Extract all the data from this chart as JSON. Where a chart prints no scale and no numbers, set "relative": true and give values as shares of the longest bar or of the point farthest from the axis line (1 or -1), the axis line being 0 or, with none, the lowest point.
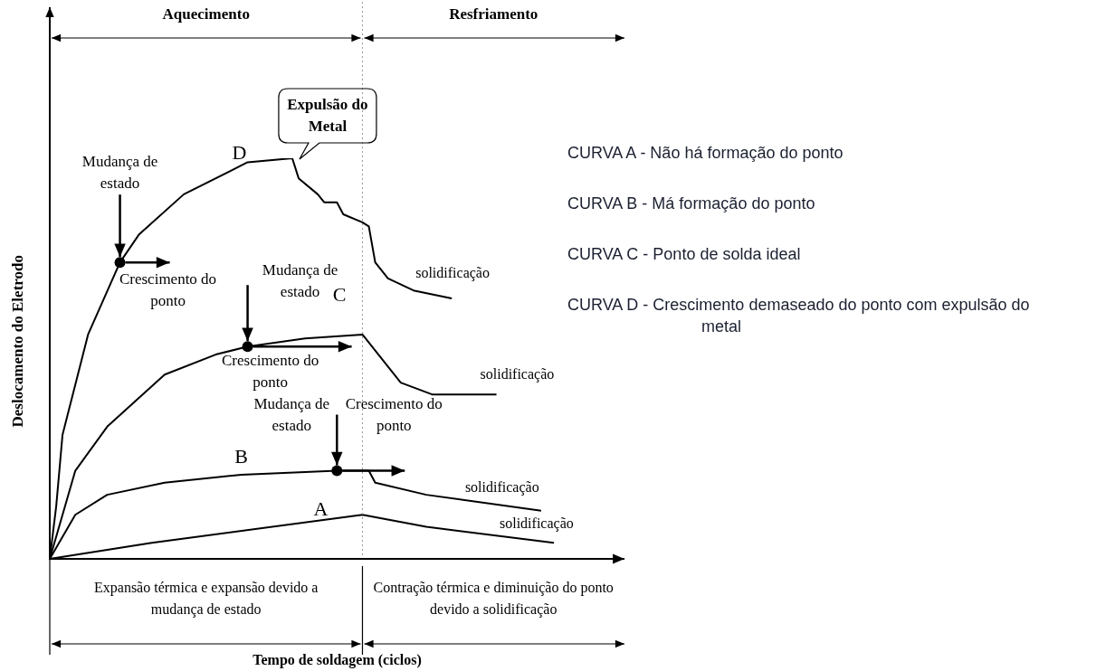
{
  "chart_data": {
    "type": "line",
    "relative": true,
    "ylabel": "Deslocamento do Eletrodo",
    "tick_labels": false,
    "categories": [
      null,
      null,
      null,
      null,
      null,
      null,
      null,
      null,
      null,
      null,
      null,
      null,
      null,
      null,
      null,
      null,
      null,
      null,
      null,
      null,
      null,
      null,
      null,
      null,
      null,
      null,
      null,
      null,
      null,
      null,
      null,
      null,
      null,
      null,
      null,
      null,
      null,
      null,
      null,
      null,
      null,
      null,
      null,
      null,
      null,
      null,
      null,
      null,
      null,
      null,
      null,
      null,
      null,
      null,
      null,
      null,
      null,
      null,
      null,
      null,
      null,
      null,
      null,
      null,
      null,
      null,
      null,
      null,
      null,
      null,
      null,
      null,
      null,
      null,
      null,
      null,
      null,
      null,
      null,
      null
    ],
    "series": [
      {
        "name": "A",
        "color": "#000000",
        "values": [
          0,
          null,
          null,
          null,
          null,
          null,
          null,
          null,
          null,
          null,
          null,
          null,
          null,
          null,
          null,
          null,
          0.04,
          null,
          null,
          null,
          null,
          null,
          null,
          null,
          null,
          null,
          null,
          null,
          null,
          null,
          null,
          null,
          null,
          null,
          null,
          null,
          null,
          null,
          null,
          null,
          null,
          null,
          null,
          null,
          null,
          null,
          null,
          null,
          null,
          0.11,
          null,
          null,
          null,
          null,
          null,
          null,
          null,
          null,
          null,
          0.08,
          null,
          null,
          null,
          null,
          null,
          null,
          null,
          null,
          null,
          null,
          null,
          null,
          null,
          null,
          null,
          null,
          null,
          null,
          null,
          0.04
        ]
      },
      {
        "name": "B",
        "color": "#000000",
        "values": [
          0,
          null,
          null,
          null,
          0.11,
          null,
          null,
          null,
          null,
          0.16,
          null,
          null,
          null,
          null,
          null,
          null,
          null,
          null,
          0.19,
          null,
          null,
          null,
          null,
          null,
          null,
          null,
          null,
          null,
          null,
          null,
          0.21,
          null,
          null,
          null,
          null,
          null,
          null,
          null,
          null,
          null,
          null,
          null,
          null,
          null,
          null,
          0.22,
          null,
          null,
          null,
          null,
          0.22,
          0.19,
          null,
          null,
          null,
          null,
          null,
          null,
          null,
          0.16,
          null,
          null,
          null,
          null,
          null,
          null,
          null,
          null,
          null,
          null,
          null,
          null,
          null,
          null,
          null,
          null,
          null,
          0.12,
          null,
          null
        ]
      },
      {
        "name": "C",
        "color": "#000000",
        "values": [
          0,
          null,
          null,
          null,
          0.22,
          null,
          null,
          null,
          null,
          0.33,
          null,
          null,
          null,
          null,
          null,
          null,
          null,
          null,
          0.46,
          null,
          null,
          null,
          null,
          null,
          null,
          null,
          0.51,
          null,
          null,
          null,
          null,
          0.53,
          null,
          null,
          null,
          null,
          null,
          null,
          null,
          null,
          0.55,
          null,
          null,
          null,
          null,
          null,
          null,
          null,
          null,
          0.56,
          null,
          0.52,
          null,
          null,
          null,
          0.44,
          null,
          null,
          null,
          null,
          0.41,
          null,
          null,
          null,
          null,
          null,
          null,
          null,
          null,
          null,
          0.41,
          null,
          null,
          null,
          null,
          null,
          null,
          null,
          null,
          null
        ]
      },
      {
        "name": "D",
        "color": "#000000",
        "values": [
          0,
          0.13,
          0.31,
          null,
          null,
          null,
          0.56,
          null,
          null,
          null,
          null,
          0.74,
          null,
          null,
          0.81,
          null,
          null,
          null,
          null,
          null,
          null,
          0.91,
          null,
          null,
          null,
          null,
          null,
          null,
          null,
          null,
          null,
          0.99,
          null,
          null,
          null,
          null,
          null,
          null,
          1,
          0.95,
          null,
          null,
          0.91,
          0.89,
          null,
          0.89,
          0.86,
          null,
          null,
          0.84,
          0.83,
          0.74,
          null,
          0.7,
          null,
          null,
          null,
          0.67,
          null,
          null,
          null,
          null,
          null,
          0.65,
          null,
          null,
          null,
          null,
          null,
          null,
          null,
          null,
          null,
          null,
          null,
          null,
          null,
          null,
          null,
          null
        ]
      }
    ],
    "annotations": [
      "Aquecimento",
      "Resfriamento",
      "Expansão térmica e expansão devido a mudança de estado",
      "Contração térmica e diminuição do ponto devido a solidificação",
      "CURVA A  -  Não há formação do ponto",
      "CURVA B  -  Má formação do ponto",
      "CURVA C  -  Ponto de solda ideal",
      "CURVA D  -  Crescimento demaseado do ponto com expulsão do metal",
      "Mudança de estado",
      "Crescimento do ponto",
      "Mudança de estado",
      "Crescimento do ponto",
      "Mudança de estado",
      "Crescimento do ponto",
      "Expulsão do Metal",
      "solidificação",
      "solidificação",
      "solidificação",
      "solidificação",
      "Tempo de soldagem (ciclos)"
    ]
  }
}
